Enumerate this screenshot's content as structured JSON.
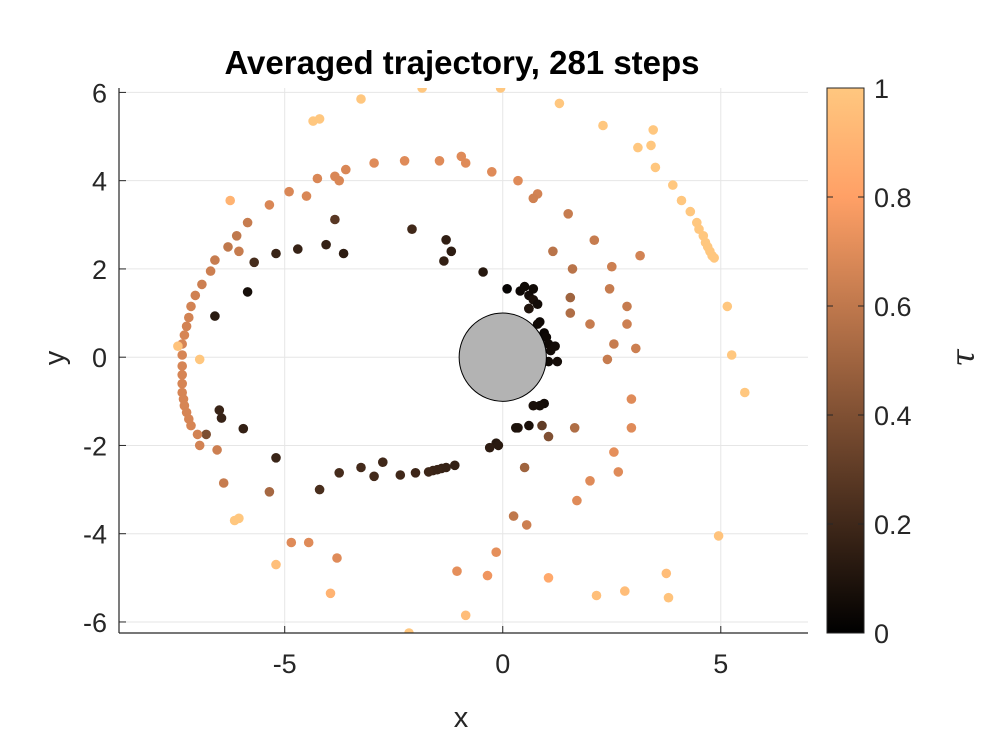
{
  "chart_data": {
    "type": "scatter",
    "title": "Averaged trajectory, 281 steps",
    "xlabel": "x",
    "ylabel": "y",
    "xlim": [
      -8.8,
      7.0
    ],
    "ylim": [
      -6.25,
      6.1
    ],
    "xticks": [
      -5,
      0,
      5
    ],
    "yticks": [
      -6,
      -4,
      -2,
      0,
      2,
      4,
      6
    ],
    "xtick_labels": [
      "-5",
      "0",
      "5"
    ],
    "ytick_labels": [
      "-6",
      "-4",
      "-2",
      "0",
      "2",
      "4",
      "6"
    ],
    "grid": true,
    "colorbar": {
      "label": "τ",
      "colormap": "copper",
      "range": [
        0,
        1
      ],
      "ticks": [
        0,
        0.2,
        0.4,
        0.6,
        0.8,
        1
      ],
      "tick_labels": [
        "0",
        "0.2",
        "0.4",
        "0.6",
        "0.8",
        "1"
      ]
    },
    "obstacle": {
      "shape": "circle",
      "center": [
        0,
        0
      ],
      "radius": 1.0,
      "color": "#b3b3b3"
    },
    "points": [
      [
        0.1,
        1.55,
        0.02
      ],
      [
        0.4,
        1.5,
        0.04
      ],
      [
        0.5,
        1.6,
        0.05
      ],
      [
        0.6,
        1.4,
        0.06
      ],
      [
        0.6,
        1.1,
        0.07
      ],
      [
        0.7,
        1.3,
        0.08
      ],
      [
        0.8,
        1.2,
        0.06
      ],
      [
        0.85,
        0.8,
        0.04
      ],
      [
        0.95,
        0.55,
        0.03
      ],
      [
        1.0,
        0.45,
        0.04
      ],
      [
        1.05,
        0.3,
        0.05
      ],
      [
        1.1,
        0.15,
        0.06
      ],
      [
        1.05,
        -0.1,
        0.05
      ],
      [
        1.2,
        0.25,
        0.06
      ],
      [
        1.25,
        -0.1,
        0.07
      ],
      [
        0.95,
        -1.05,
        0.06
      ],
      [
        0.85,
        -1.1,
        0.07
      ],
      [
        0.7,
        -1.1,
        0.08
      ],
      [
        0.6,
        -1.55,
        0.08
      ],
      [
        0.35,
        -1.6,
        0.1
      ],
      [
        0.3,
        -1.6,
        0.09
      ],
      [
        -0.15,
        -1.95,
        0.12
      ],
      [
        -0.1,
        -2.0,
        0.13
      ],
      [
        -0.3,
        -2.05,
        0.14
      ],
      [
        -1.1,
        -2.45,
        0.16
      ],
      [
        -1.3,
        -2.5,
        0.17
      ],
      [
        -1.4,
        -2.52,
        0.17
      ],
      [
        -1.5,
        -2.55,
        0.18
      ],
      [
        -1.6,
        -2.57,
        0.18
      ],
      [
        -1.7,
        -2.6,
        0.19
      ],
      [
        -2.0,
        -2.62,
        0.19
      ],
      [
        -2.35,
        -2.67,
        0.2
      ],
      [
        -2.75,
        -2.38,
        0.2
      ],
      [
        -2.95,
        -2.7,
        0.21
      ],
      [
        -3.25,
        -2.5,
        0.21
      ],
      [
        -3.75,
        -2.62,
        0.22
      ],
      [
        -4.2,
        -3.0,
        0.23
      ],
      [
        -5.2,
        -2.28,
        0.18
      ],
      [
        -5.95,
        -1.62,
        0.16
      ],
      [
        -6.45,
        -1.38,
        0.17
      ],
      [
        -6.5,
        -1.2,
        0.18
      ],
      [
        -6.6,
        0.93,
        0.13
      ],
      [
        -5.85,
        1.48,
        0.07
      ],
      [
        -5.7,
        2.15,
        0.22
      ],
      [
        -5.2,
        2.35,
        0.18
      ],
      [
        -4.7,
        2.45,
        0.17
      ],
      [
        -4.05,
        2.55,
        0.16
      ],
      [
        -3.65,
        2.35,
        0.14
      ],
      [
        -3.85,
        3.12,
        0.28
      ],
      [
        -2.08,
        2.9,
        0.2
      ],
      [
        -1.35,
        2.18,
        0.16
      ],
      [
        -1.18,
        2.4,
        0.14
      ],
      [
        -1.3,
        2.66,
        0.15
      ],
      [
        -0.45,
        1.93,
        0.12
      ],
      [
        0.7,
        1.55,
        0.05
      ],
      [
        0.6,
        1.1,
        0.1
      ],
      [
        0.8,
        0.75,
        0.05
      ],
      [
        -6.8,
        -1.75,
        0.39
      ],
      [
        0.5,
        -0.45,
        0.5
      ],
      [
        -6.25,
        3.55,
        0.9
      ],
      [
        -6.05,
        2.4,
        0.62
      ],
      [
        -5.85,
        3.05,
        0.62
      ],
      [
        -6.1,
        2.75,
        0.6
      ],
      [
        -6.3,
        2.5,
        0.6
      ],
      [
        -6.6,
        2.2,
        0.62
      ],
      [
        -6.7,
        1.95,
        0.64
      ],
      [
        -6.9,
        1.65,
        0.64
      ],
      [
        -7.05,
        1.4,
        0.65
      ],
      [
        -7.15,
        1.15,
        0.66
      ],
      [
        -7.2,
        0.9,
        0.66
      ],
      [
        -7.25,
        0.7,
        0.66
      ],
      [
        -7.3,
        0.5,
        0.67
      ],
      [
        -7.35,
        0.3,
        0.67
      ],
      [
        -7.45,
        0.25,
        0.98
      ],
      [
        -7.35,
        0.05,
        0.67
      ],
      [
        -7.35,
        -0.2,
        0.67
      ],
      [
        -7.35,
        -0.4,
        0.67
      ],
      [
        -7.35,
        -0.6,
        0.67
      ],
      [
        -7.35,
        -0.8,
        0.67
      ],
      [
        -7.32,
        -0.95,
        0.67
      ],
      [
        -7.3,
        -1.1,
        0.67
      ],
      [
        -7.25,
        -1.25,
        0.67
      ],
      [
        -7.2,
        -1.4,
        0.67
      ],
      [
        -7.15,
        -1.55,
        0.67
      ],
      [
        -7.0,
        -1.75,
        0.66
      ],
      [
        -6.95,
        -2.0,
        0.66
      ],
      [
        -6.55,
        -2.1,
        0.64
      ],
      [
        -6.4,
        -2.85,
        0.62
      ],
      [
        -5.35,
        -3.05,
        0.52
      ],
      [
        -6.15,
        -3.7,
        1.0
      ],
      [
        -6.05,
        -3.65,
        1.0
      ],
      [
        -5.2,
        -4.7,
        0.96
      ],
      [
        -4.85,
        -4.2,
        0.7
      ],
      [
        -4.45,
        -4.2,
        0.7
      ],
      [
        -3.8,
        -4.55,
        0.7
      ],
      [
        -3.95,
        -5.35,
        0.9
      ],
      [
        -2.15,
        -6.25,
        1.0
      ],
      [
        -0.85,
        -5.85,
        0.95
      ],
      [
        -1.05,
        -4.85,
        0.72
      ],
      [
        -0.35,
        -4.95,
        0.75
      ],
      [
        -0.15,
        -4.42,
        0.72
      ],
      [
        0.25,
        -3.6,
        0.6
      ],
      [
        0.55,
        -3.8,
        0.64
      ],
      [
        1.05,
        -5.0,
        0.85
      ],
      [
        2.15,
        -5.4,
        0.96
      ],
      [
        2.8,
        -5.3,
        0.95
      ],
      [
        3.75,
        -4.9,
        0.95
      ],
      [
        3.8,
        -5.45,
        0.98
      ],
      [
        4.95,
        -4.05,
        0.98
      ],
      [
        1.7,
        -3.25,
        0.7
      ],
      [
        2.0,
        -2.8,
        0.7
      ],
      [
        2.65,
        -2.6,
        0.7
      ],
      [
        2.55,
        -2.15,
        0.72
      ],
      [
        2.95,
        -1.6,
        0.7
      ],
      [
        2.95,
        -0.95,
        0.7
      ],
      [
        1.65,
        -1.6,
        0.55
      ],
      [
        1.05,
        -1.8,
        0.4
      ],
      [
        0.9,
        -1.55,
        0.3
      ],
      [
        0.5,
        -2.5,
        0.5
      ],
      [
        2.4,
        -0.05,
        0.62
      ],
      [
        2.55,
        0.3,
        0.62
      ],
      [
        3.05,
        0.2,
        0.64
      ],
      [
        2.85,
        0.75,
        0.64
      ],
      [
        2.0,
        0.75,
        0.62
      ],
      [
        2.85,
        1.15,
        0.62
      ],
      [
        1.55,
        1.0,
        0.55
      ],
      [
        1.55,
        1.35,
        0.5
      ],
      [
        2.45,
        1.55,
        0.62
      ],
      [
        2.5,
        2.05,
        0.64
      ],
      [
        3.15,
        2.3,
        0.66
      ],
      [
        1.6,
        2.0,
        0.58
      ],
      [
        2.1,
        2.65,
        0.62
      ],
      [
        1.15,
        2.4,
        0.58
      ],
      [
        1.5,
        3.25,
        0.62
      ],
      [
        0.8,
        3.7,
        0.66
      ],
      [
        0.7,
        3.6,
        0.65
      ],
      [
        0.35,
        4.0,
        0.7
      ],
      [
        -0.25,
        4.2,
        0.7
      ],
      [
        -0.95,
        4.55,
        0.7
      ],
      [
        -0.85,
        4.4,
        0.7
      ],
      [
        -1.45,
        4.45,
        0.7
      ],
      [
        -2.25,
        4.45,
        0.7
      ],
      [
        -2.95,
        4.4,
        0.7
      ],
      [
        -3.6,
        4.25,
        0.68
      ],
      [
        -3.85,
        4.1,
        0.68
      ],
      [
        -3.75,
        4.0,
        0.68
      ],
      [
        -4.25,
        4.05,
        0.68
      ],
      [
        -4.5,
        3.65,
        0.68
      ],
      [
        -4.9,
        3.75,
        0.68
      ],
      [
        -5.35,
        3.45,
        0.68
      ],
      [
        -4.35,
        5.35,
        1.0
      ],
      [
        -4.2,
        5.4,
        1.0
      ],
      [
        -3.25,
        5.85,
        1.0
      ],
      [
        -1.85,
        6.1,
        1.0
      ],
      [
        -0.05,
        6.1,
        1.0
      ],
      [
        1.3,
        5.75,
        1.0
      ],
      [
        2.3,
        5.25,
        1.0
      ],
      [
        3.1,
        4.75,
        1.0
      ],
      [
        3.45,
        5.15,
        1.0
      ],
      [
        3.4,
        4.8,
        1.0
      ],
      [
        3.5,
        4.3,
        1.0
      ],
      [
        3.9,
        3.9,
        1.0
      ],
      [
        4.1,
        3.55,
        1.0
      ],
      [
        4.3,
        3.3,
        1.0
      ],
      [
        4.45,
        3.05,
        1.0
      ],
      [
        4.5,
        2.9,
        1.0
      ],
      [
        4.6,
        2.75,
        1.0
      ],
      [
        4.65,
        2.6,
        1.0
      ],
      [
        4.7,
        2.5,
        1.0
      ],
      [
        4.75,
        2.4,
        1.0
      ],
      [
        4.8,
        2.3,
        1.0
      ],
      [
        4.85,
        2.25,
        1.0
      ],
      [
        5.15,
        1.15,
        1.0
      ],
      [
        5.25,
        0.05,
        1.0
      ],
      [
        5.55,
        -0.8,
        1.0
      ],
      [
        -6.95,
        -0.05,
        1.0
      ]
    ]
  }
}
